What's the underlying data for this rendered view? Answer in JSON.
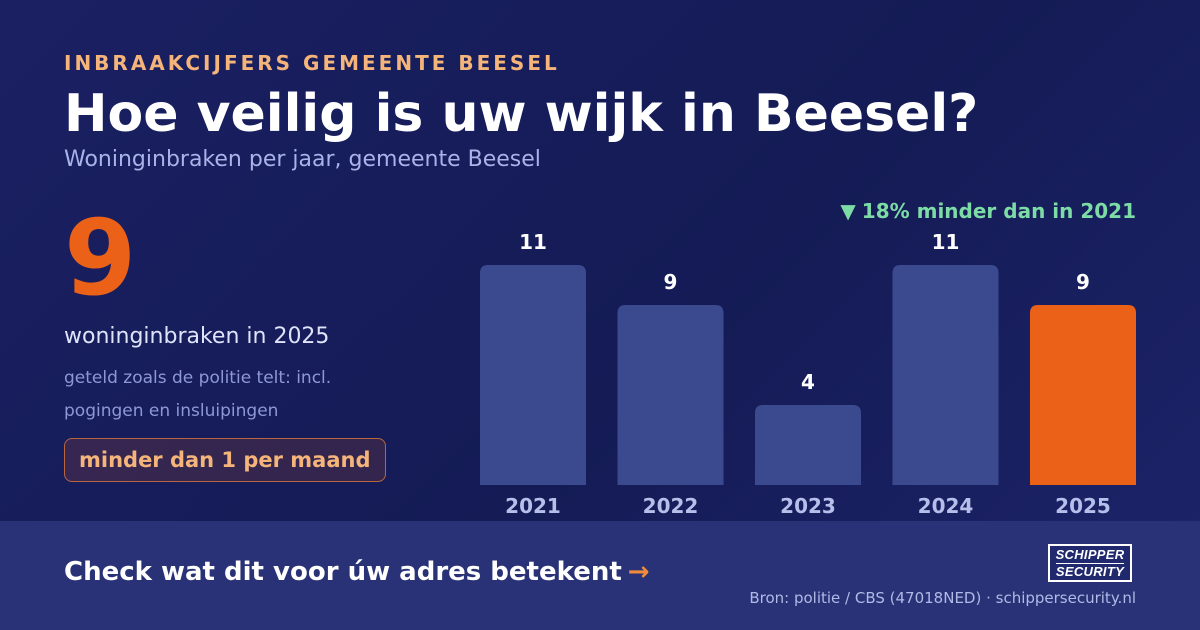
{
  "header": {
    "eyebrow": "INBRAAKCIJFERS GEMEENTE BEESEL",
    "title": "Hoe veilig is uw wijk in Beesel?",
    "subtitle": "Woninginbraken per jaar, gemeente Beesel"
  },
  "kpi": {
    "value": "9",
    "label": "woninginbraken in 2025",
    "note": "geteld zoals de politie telt: incl. pogingen en insluipingen",
    "pill": "minder dan 1 per maand"
  },
  "delta": {
    "icon": "▼",
    "text": "18% minder dan in 2021"
  },
  "chart_data": {
    "type": "bar",
    "categories": [
      "2021",
      "2022",
      "2023",
      "2024",
      "2025"
    ],
    "values": [
      11,
      9,
      4,
      11,
      9
    ],
    "highlight_index": 4,
    "ylim": [
      0,
      11
    ],
    "title": "",
    "xlabel": "",
    "ylabel": "",
    "colors": {
      "bar": "#3b4a8f",
      "highlight": "#ec6118",
      "value_label": "#ffffff",
      "tick_label": "#b6bfea"
    }
  },
  "footer": {
    "cta": "Check wat dit voor úw adres betekent",
    "cta_arrow": "→",
    "source": "Bron: politie / CBS (47018NED) · schippersecurity.nl"
  },
  "logo": {
    "line1": "SCHIPPER",
    "line2": "SECURITY"
  },
  "colors": {
    "background": "#161c58",
    "accent": "#ec6118",
    "eyebrow": "#f5b57a",
    "positive": "#7ddba6"
  }
}
